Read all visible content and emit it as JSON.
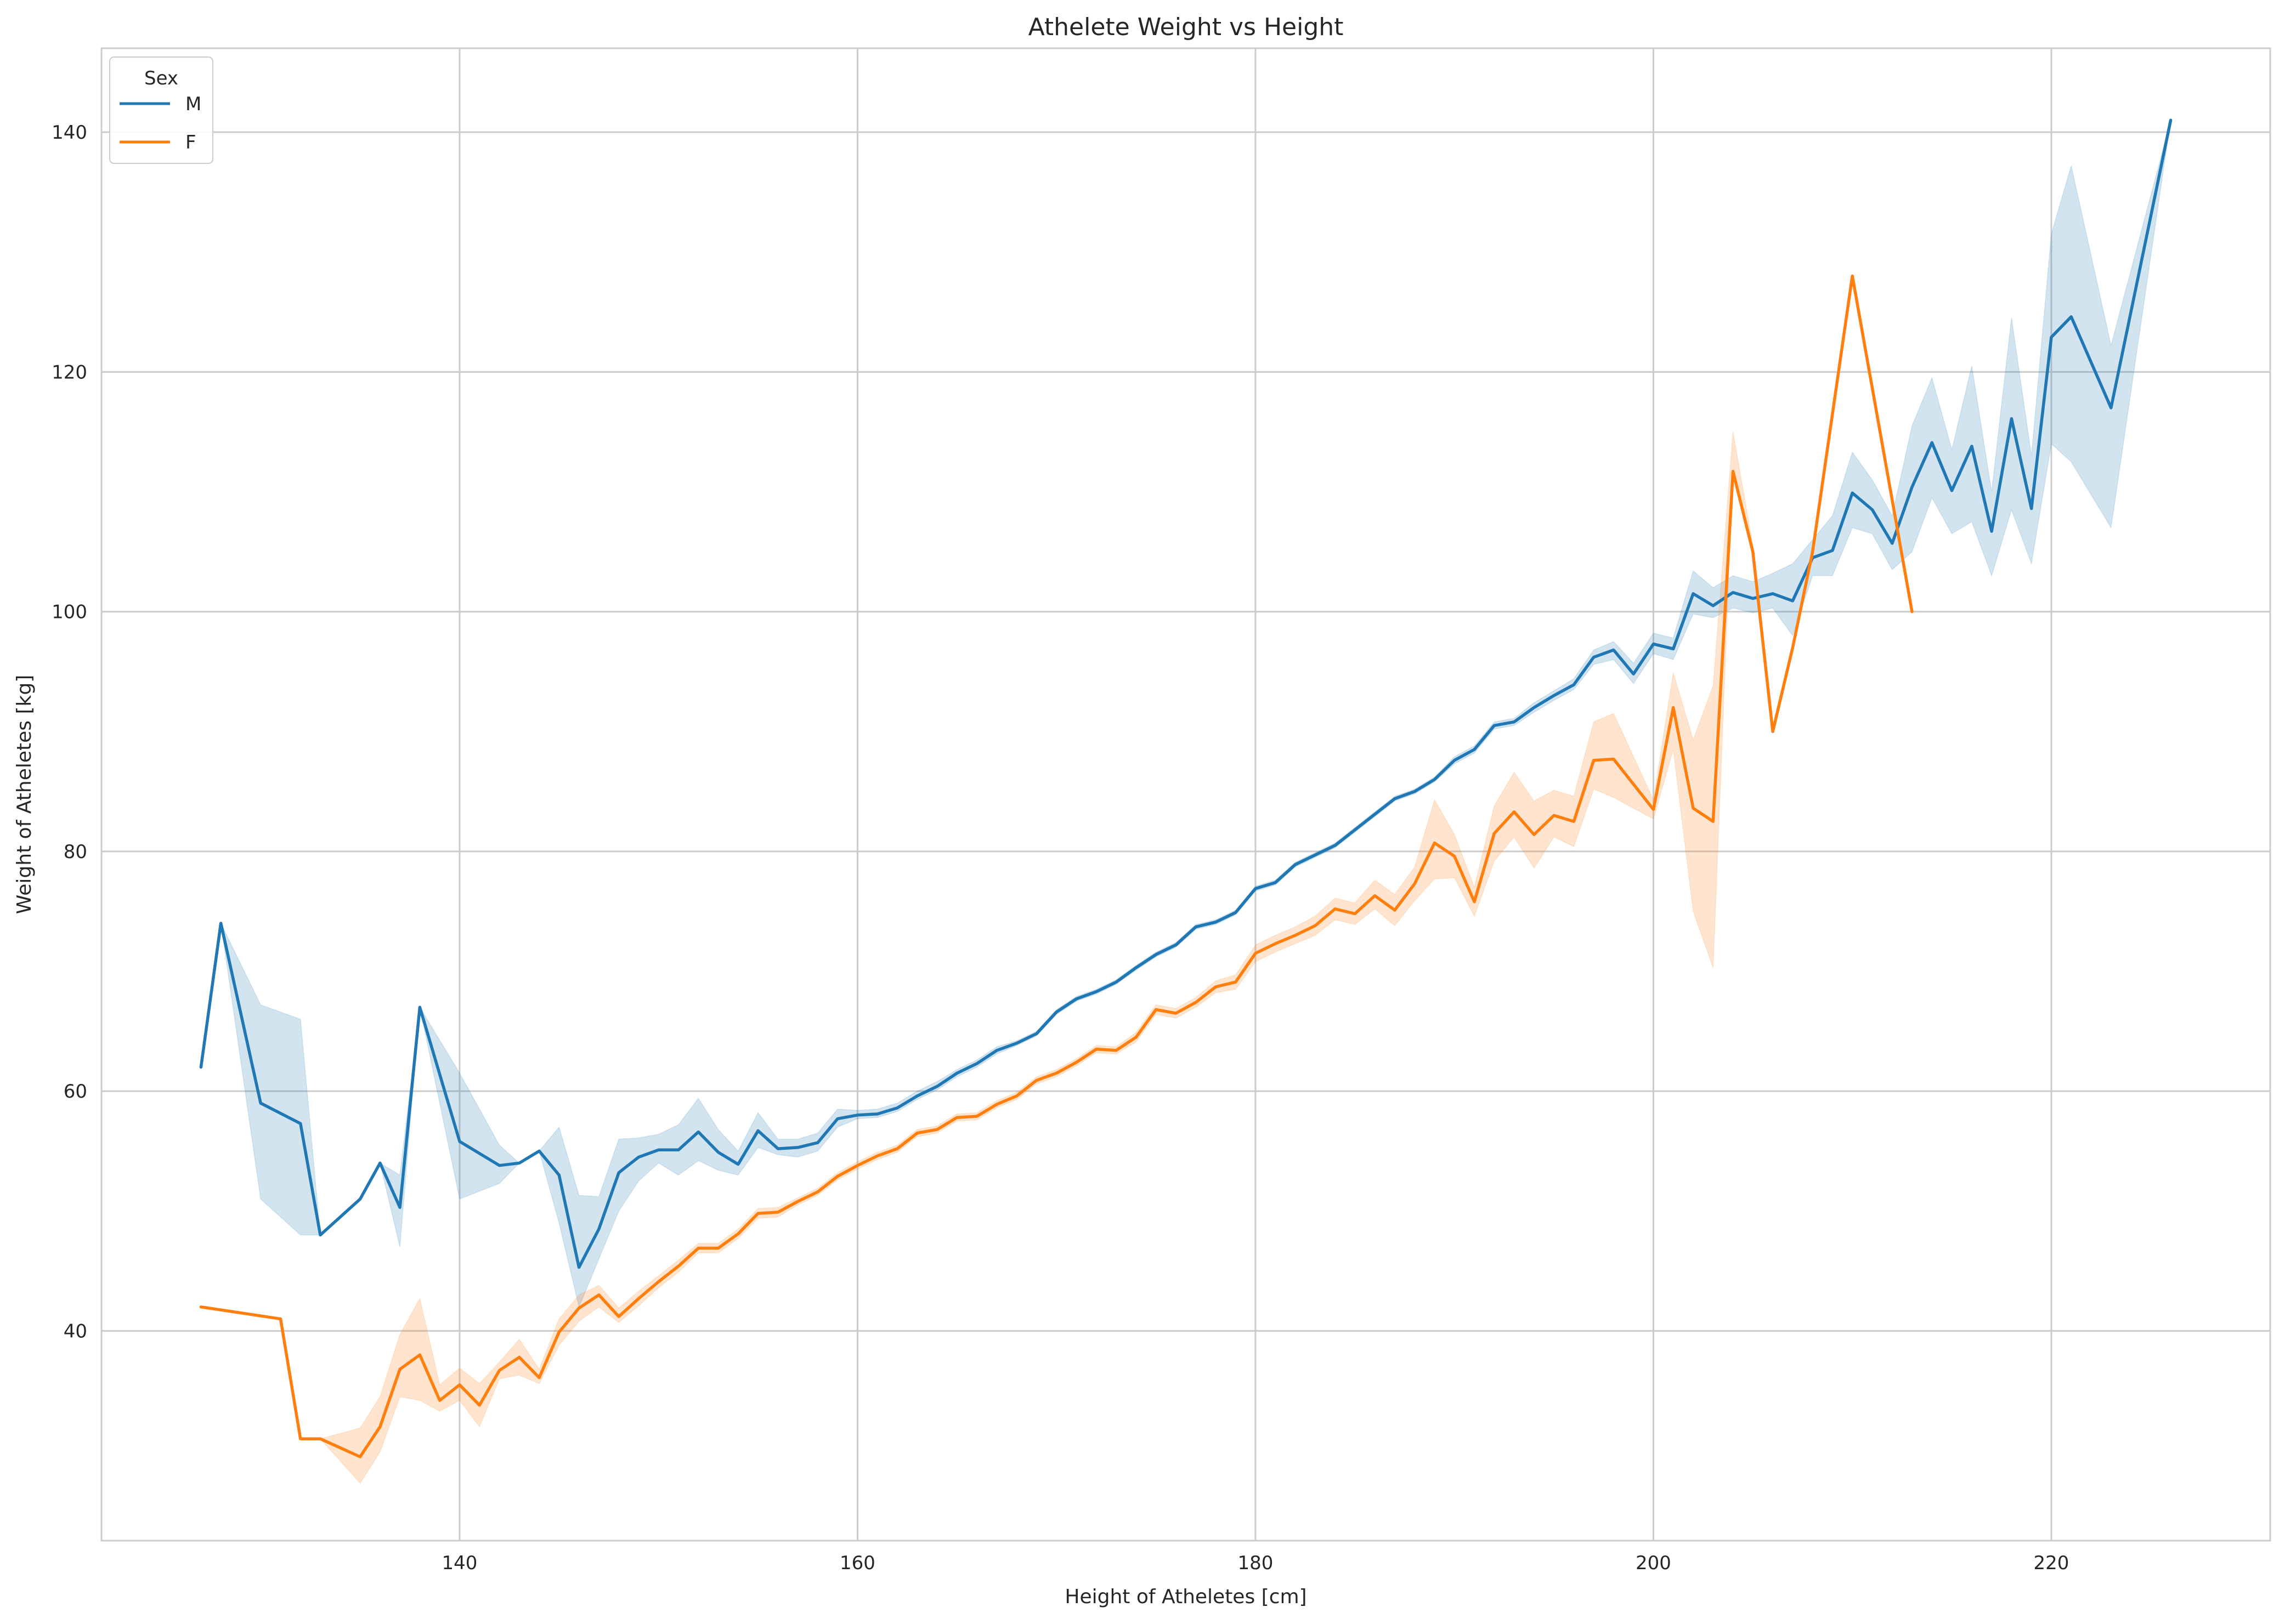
{
  "chart_data": {
    "type": "line",
    "title": "Athelete Weight vs Height",
    "xlabel": "Height of Atheletes [cm]",
    "ylabel": "Weight of Atheletes [kg]",
    "xlim": [
      122,
      231
    ],
    "ylim": [
      22.5,
      147
    ],
    "xticks": [
      140,
      160,
      180,
      200,
      220
    ],
    "yticks": [
      40,
      60,
      80,
      100,
      120,
      140
    ],
    "grid": true,
    "legend": {
      "title": "Sex",
      "placement": "top-left"
    },
    "series": [
      {
        "name": "M",
        "color": "#1f77b4",
        "x": [
          127,
          128,
          130,
          132,
          133,
          135,
          136,
          137,
          138,
          140,
          142,
          143,
          144,
          145,
          146,
          147,
          148,
          149,
          150,
          151,
          152,
          153,
          154,
          155,
          156,
          157,
          158,
          159,
          160,
          161,
          162,
          163,
          164,
          165,
          166,
          167,
          168,
          169,
          170,
          171,
          172,
          173,
          174,
          175,
          176,
          177,
          178,
          179,
          180,
          181,
          182,
          183,
          184,
          185,
          186,
          187,
          188,
          189,
          190,
          191,
          192,
          193,
          194,
          195,
          196,
          197,
          198,
          199,
          200,
          201,
          202,
          203,
          204,
          205,
          206,
          207,
          208,
          209,
          210,
          211,
          212,
          213,
          214,
          215,
          216,
          217,
          218,
          219,
          220,
          221,
          223,
          226
        ],
        "y": [
          62,
          74,
          59,
          57.3,
          48,
          51,
          54,
          50.3,
          67,
          55.8,
          53.8,
          54,
          55,
          53,
          45.3,
          48.5,
          53.2,
          54.5,
          55.1,
          55.1,
          56.6,
          54.9,
          53.9,
          56.7,
          55.2,
          55.3,
          55.7,
          57.7,
          58,
          58.1,
          58.6,
          59.6,
          60.4,
          61.5,
          62.3,
          63.4,
          64,
          64.8,
          66.6,
          67.7,
          68.3,
          69.1,
          70.3,
          71.4,
          72.2,
          73.7,
          74.1,
          74.9,
          76.9,
          77.4,
          78.9,
          79.7,
          80.5,
          81.8,
          83.1,
          84.4,
          85,
          86,
          87.6,
          88.5,
          90.5,
          90.8,
          92,
          93,
          93.9,
          96.2,
          96.8,
          94.8,
          97.3,
          96.9,
          101.5,
          100.5,
          101.6,
          101.1,
          101.5,
          100.9,
          104.5,
          105.1,
          109.9,
          108.5,
          105.7,
          110.4,
          114.1,
          110.1,
          113.8,
          106.7,
          116.1,
          108.6,
          122.9,
          124.6,
          117,
          141
        ],
        "ci": [
          [
            127,
            62,
            62
          ],
          [
            128,
            74,
            74
          ],
          [
            130,
            51,
            67.2
          ],
          [
            132,
            48,
            66
          ],
          [
            133,
            48,
            48
          ],
          [
            135,
            51,
            51
          ],
          [
            136,
            54,
            54
          ],
          [
            137,
            47,
            53
          ],
          [
            138,
            67,
            67
          ],
          [
            140,
            51,
            61.5
          ],
          [
            142,
            52.3,
            55.5
          ],
          [
            143,
            54,
            54
          ],
          [
            144,
            55,
            55
          ],
          [
            145,
            49,
            57
          ],
          [
            146,
            42,
            51.3
          ],
          [
            147,
            46,
            51.2
          ],
          [
            148,
            50,
            56
          ],
          [
            149,
            52.5,
            56.1
          ],
          [
            150,
            54,
            56.4
          ],
          [
            151,
            53,
            57.2
          ],
          [
            152,
            54.2,
            59.4
          ],
          [
            153,
            53.4,
            56.8
          ],
          [
            154,
            53,
            55
          ],
          [
            155,
            55.3,
            58.2
          ],
          [
            156,
            54.7,
            56
          ],
          [
            157,
            54.5,
            56
          ],
          [
            158,
            55,
            56.5
          ],
          [
            159,
            57,
            58.5
          ],
          [
            160,
            57.7,
            58.4
          ],
          [
            161,
            57.8,
            58.5
          ],
          [
            162,
            58.3,
            59
          ],
          [
            163,
            59.3,
            60
          ],
          [
            164,
            60.1,
            60.8
          ],
          [
            165,
            61.2,
            61.8
          ],
          [
            166,
            62,
            62.6
          ],
          [
            167,
            63.1,
            63.7
          ],
          [
            168,
            63.8,
            64.2
          ],
          [
            169,
            64.6,
            65
          ],
          [
            170,
            66.4,
            66.8
          ],
          [
            171,
            67.5,
            67.9
          ],
          [
            172,
            68.1,
            68.5
          ],
          [
            173,
            68.9,
            69.3
          ],
          [
            174,
            70.1,
            70.5
          ],
          [
            175,
            71.2,
            71.6
          ],
          [
            176,
            72,
            72.4
          ],
          [
            177,
            73.5,
            73.9
          ],
          [
            178,
            73.9,
            74.3
          ],
          [
            179,
            74.7,
            75.1
          ],
          [
            180,
            76.7,
            77.1
          ],
          [
            181,
            77.2,
            77.6
          ],
          [
            182,
            78.7,
            79.1
          ],
          [
            183,
            79.5,
            79.9
          ],
          [
            184,
            80.3,
            80.7
          ],
          [
            185,
            81.6,
            82
          ],
          [
            186,
            82.9,
            83.3
          ],
          [
            187,
            84.2,
            84.6
          ],
          [
            188,
            84.8,
            85.2
          ],
          [
            189,
            85.8,
            86.2
          ],
          [
            190,
            87.3,
            87.9
          ],
          [
            191,
            88.2,
            88.8
          ],
          [
            192,
            90.2,
            90.8
          ],
          [
            193,
            90.5,
            91.1
          ],
          [
            194,
            91.6,
            92.4
          ],
          [
            195,
            92.6,
            93.4
          ],
          [
            196,
            93.5,
            94.4
          ],
          [
            197,
            95.6,
            96.8
          ],
          [
            198,
            96,
            97.5
          ],
          [
            199,
            94,
            95.7
          ],
          [
            200,
            96.5,
            98.2
          ],
          [
            201,
            96,
            97.8
          ],
          [
            202,
            99.8,
            103.4
          ],
          [
            203,
            99.5,
            102
          ],
          [
            204,
            100.3,
            103
          ],
          [
            205,
            99.9,
            102.5
          ],
          [
            206,
            100.3,
            103.2
          ],
          [
            207,
            98,
            104
          ],
          [
            208,
            103,
            106
          ],
          [
            209,
            103,
            108
          ],
          [
            210,
            107,
            113.3
          ],
          [
            211,
            106.5,
            111
          ],
          [
            212,
            103.5,
            108
          ],
          [
            213,
            105,
            115.5
          ],
          [
            214,
            109.5,
            119.5
          ],
          [
            215,
            106.5,
            113.5
          ],
          [
            216,
            107.5,
            120.5
          ],
          [
            217,
            103,
            110
          ],
          [
            218,
            108.5,
            124.5
          ],
          [
            219,
            104,
            113
          ],
          [
            220,
            114,
            131.5
          ],
          [
            221,
            112.5,
            137.2
          ],
          [
            223,
            107,
            122.2
          ],
          [
            226,
            141,
            141
          ]
        ]
      },
      {
        "name": "F",
        "color": "#ff7f0e",
        "x": [
          127,
          131,
          132,
          133,
          135,
          136,
          137,
          138,
          139,
          140,
          141,
          142,
          143,
          144,
          145,
          146,
          147,
          148,
          149,
          150,
          151,
          152,
          153,
          154,
          155,
          156,
          157,
          158,
          159,
          160,
          161,
          162,
          163,
          164,
          165,
          166,
          167,
          168,
          169,
          170,
          171,
          172,
          173,
          174,
          175,
          176,
          177,
          178,
          179,
          180,
          181,
          182,
          183,
          184,
          185,
          186,
          187,
          188,
          189,
          190,
          191,
          192,
          193,
          194,
          195,
          196,
          197,
          198,
          200,
          201,
          202,
          203,
          204,
          205,
          206,
          207,
          208,
          210,
          213
        ],
        "y": [
          42,
          41,
          31,
          31,
          29.5,
          32,
          36.8,
          38,
          34.2,
          35.5,
          33.8,
          36.7,
          37.8,
          36.1,
          39.9,
          41.9,
          43,
          41.2,
          42.7,
          44.1,
          45.4,
          46.9,
          46.9,
          48.1,
          49.8,
          49.9,
          50.8,
          51.6,
          52.9,
          53.8,
          54.6,
          55.2,
          56.5,
          56.8,
          57.8,
          57.9,
          58.9,
          59.6,
          60.9,
          61.5,
          62.4,
          63.5,
          63.4,
          64.5,
          66.8,
          66.5,
          67.4,
          68.7,
          69.1,
          71.5,
          72.3,
          73,
          73.8,
          75.2,
          74.8,
          76.3,
          75.1,
          77.3,
          80.7,
          79.6,
          75.8,
          81.5,
          83.3,
          81.4,
          83,
          82.5,
          87.6,
          87.7,
          83.5,
          92,
          83.6,
          82.5,
          111.7,
          105,
          90,
          97,
          105,
          128,
          100
        ],
        "ci": [
          [
            127,
            42,
            42
          ],
          [
            131,
            41,
            41
          ],
          [
            132,
            31,
            31
          ],
          [
            133,
            31,
            31
          ],
          [
            135,
            27.3,
            31.9
          ],
          [
            136,
            29.9,
            34.5
          ],
          [
            137,
            34.5,
            39.7
          ],
          [
            138,
            34.2,
            42.7
          ],
          [
            139,
            33.3,
            35.5
          ],
          [
            140,
            34.2,
            36.9
          ],
          [
            141,
            32,
            35.6
          ],
          [
            142,
            36,
            37.4
          ],
          [
            143,
            36.3,
            39.3
          ],
          [
            144,
            35.6,
            36.8
          ],
          [
            145,
            38.8,
            41
          ],
          [
            146,
            40.8,
            43
          ],
          [
            147,
            42,
            43.8
          ],
          [
            148,
            40.7,
            41.9
          ],
          [
            149,
            42.1,
            43.3
          ],
          [
            150,
            43.6,
            44.6
          ],
          [
            151,
            44.9,
            45.9
          ],
          [
            152,
            46.5,
            47.3
          ],
          [
            153,
            46.5,
            47.3
          ],
          [
            154,
            47.7,
            48.5
          ],
          [
            155,
            49.4,
            50.2
          ],
          [
            156,
            49.5,
            50.3
          ],
          [
            157,
            50.5,
            51.1
          ],
          [
            158,
            51.3,
            51.9
          ],
          [
            159,
            52.6,
            53.2
          ],
          [
            160,
            53.5,
            54.1
          ],
          [
            161,
            54.3,
            54.9
          ],
          [
            162,
            54.9,
            55.5
          ],
          [
            163,
            56.2,
            56.8
          ],
          [
            164,
            56.5,
            57.1
          ],
          [
            165,
            57.5,
            58.1
          ],
          [
            166,
            57.6,
            58.2
          ],
          [
            167,
            58.6,
            59.2
          ],
          [
            168,
            59.3,
            59.9
          ],
          [
            169,
            60.6,
            61.2
          ],
          [
            170,
            61.2,
            61.8
          ],
          [
            171,
            62.1,
            62.7
          ],
          [
            172,
            63.2,
            63.8
          ],
          [
            173,
            63.1,
            63.7
          ],
          [
            174,
            64.1,
            64.9
          ],
          [
            175,
            66.4,
            67.2
          ],
          [
            176,
            66.1,
            66.9
          ],
          [
            177,
            67,
            67.8
          ],
          [
            178,
            68.2,
            69.2
          ],
          [
            179,
            68.5,
            69.7
          ],
          [
            180,
            70.8,
            72.2
          ],
          [
            181,
            71.6,
            73
          ],
          [
            182,
            72.3,
            73.7
          ],
          [
            183,
            73,
            74.6
          ],
          [
            184,
            74.3,
            76.1
          ],
          [
            185,
            73.9,
            75.7
          ],
          [
            186,
            75.2,
            77.6
          ],
          [
            187,
            73.8,
            76.4
          ],
          [
            188,
            75.9,
            78.7
          ],
          [
            189,
            77.7,
            84.3
          ],
          [
            190,
            77.8,
            81.4
          ],
          [
            191,
            74.6,
            77
          ],
          [
            192,
            79.2,
            83.8
          ],
          [
            193,
            81.2,
            86.6
          ],
          [
            194,
            78.6,
            84.2
          ],
          [
            195,
            81.2,
            85.1
          ],
          [
            196,
            80.4,
            84.6
          ],
          [
            197,
            85.2,
            90.8
          ],
          [
            198,
            84.5,
            91.5
          ],
          [
            200,
            82.7,
            84.3
          ],
          [
            201,
            88.5,
            94.9
          ],
          [
            202,
            75,
            89.3
          ],
          [
            203,
            70.3,
            93.8
          ],
          [
            204,
            111.7,
            115
          ],
          [
            205,
            104.5,
            105.5
          ],
          [
            206,
            90,
            90
          ],
          [
            207,
            97,
            97
          ],
          [
            208,
            105,
            105
          ],
          [
            210,
            128,
            128
          ],
          [
            213,
            100,
            100
          ]
        ]
      }
    ]
  }
}
